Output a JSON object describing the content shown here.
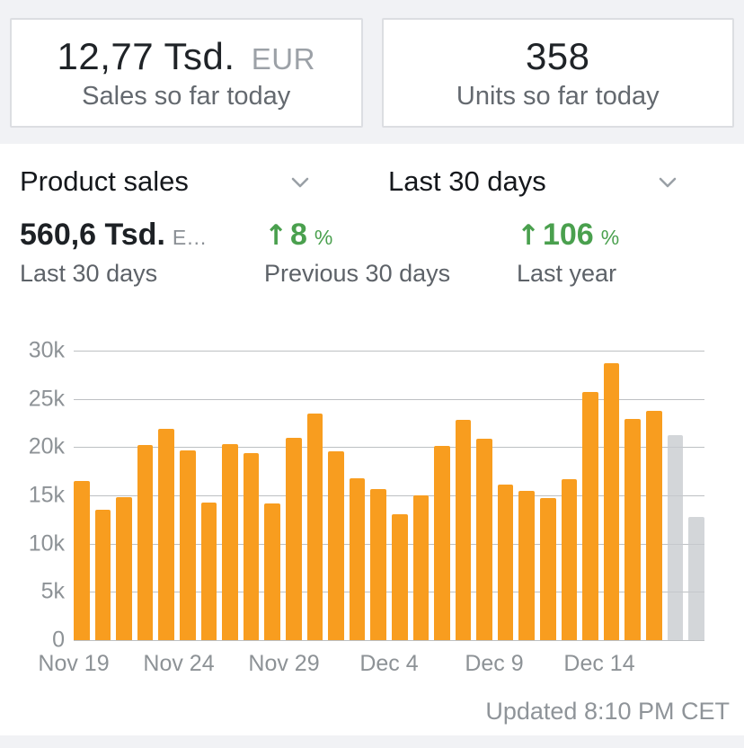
{
  "today_cards": {
    "sales": {
      "value": "12,77 Tsd.",
      "currency": "EUR",
      "label": "Sales so far today"
    },
    "units": {
      "value": "358",
      "label": "Units so far today"
    }
  },
  "selectors": {
    "metric": "Product sales",
    "range": "Last 30 days"
  },
  "stats": [
    {
      "value": "560,6 Tsd.",
      "suffix": "E…",
      "label": "Last 30 days",
      "green": false
    },
    {
      "arrow": "↑",
      "value": "8",
      "unit": "%",
      "label": "Previous 30 days",
      "green": true
    },
    {
      "arrow": "↑",
      "value": "106",
      "unit": "%",
      "label": "Last year",
      "green": true
    }
  ],
  "chart_data": {
    "type": "bar",
    "title": "Product sales — Last 30 days",
    "unit": "EUR, thousands per day",
    "ymax": 30,
    "ylim": [
      0,
      30
    ],
    "grid": true,
    "ytick_values": [
      30,
      25,
      20,
      15,
      10,
      5,
      0
    ],
    "ytick_labels": [
      "30k",
      "25k",
      "20k",
      "15k",
      "10k",
      "5k",
      "0"
    ],
    "xticks": [
      {
        "index": 0,
        "label": "Nov 19"
      },
      {
        "index": 5,
        "label": "Nov 24"
      },
      {
        "index": 10,
        "label": "Nov 29"
      },
      {
        "index": 15,
        "label": "Dec 4"
      },
      {
        "index": 20,
        "label": "Dec 9"
      },
      {
        "index": 25,
        "label": "Dec 14"
      }
    ],
    "values_thousands": [
      16.5,
      13.5,
      14.8,
      20.2,
      21.9,
      19.7,
      14.3,
      20.3,
      19.4,
      14.2,
      21.0,
      23.5,
      19.6,
      16.8,
      15.7,
      13.0,
      15.0,
      20.1,
      22.8,
      20.9,
      16.1,
      15.5,
      14.7,
      16.7,
      25.7,
      28.7,
      22.9,
      23.8,
      21.2,
      12.8
    ],
    "muted_last_n": 2
  },
  "footer": {
    "updated": "Updated 8:10 PM CET"
  },
  "icons": {
    "dropdown": "chevron-down-icon"
  },
  "colors": {
    "bar": "#f89d1f",
    "bar_muted": "#d5d7da",
    "green": "#4aa04e",
    "axis_text": "#8d9296",
    "gridline": "#bdc0c3",
    "chevron": "#9aa0a6"
  }
}
